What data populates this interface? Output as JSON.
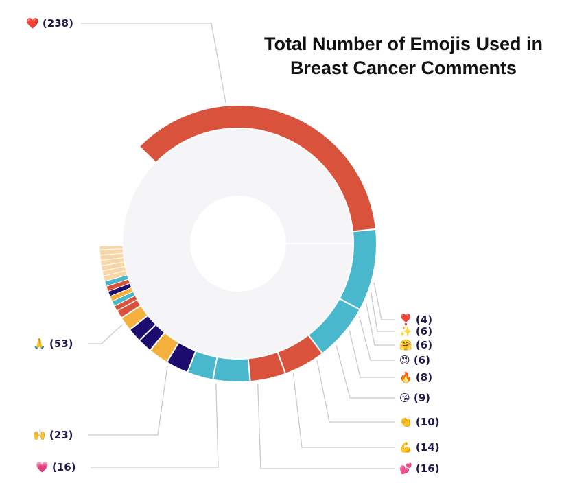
{
  "chart_data": {
    "type": "pie",
    "title_lines": [
      "Total Number of Emojis Used in",
      "Breast Cancer Comments"
    ],
    "slices": [
      {
        "label": "❤️",
        "value": 238,
        "display": "(238)",
        "color": "#d9533c"
      },
      {
        "label": "🙏",
        "value": 53,
        "display": "(53)",
        "color": "#4ab8cc"
      },
      {
        "label": "🙌",
        "value": 23,
        "display": "(23)",
        "color": "#4ab8cc"
      },
      {
        "label": "💗",
        "value": 16,
        "display": "(16)",
        "color": "#d9533c"
      },
      {
        "label": "💕",
        "value": 16,
        "display": "(16)",
        "color": "#d9533c"
      },
      {
        "label": "💪",
        "value": 14,
        "display": "(14)",
        "color": "#4ab8cc"
      },
      {
        "label": "👏",
        "value": 10,
        "display": "(10)",
        "color": "#4ab8cc"
      },
      {
        "label": "😘",
        "value": 9,
        "display": "(9)",
        "color": "#1b0c6e"
      },
      {
        "label": "🔥",
        "value": 8,
        "display": "(8)",
        "color": "#f5b13d"
      },
      {
        "label": "😍",
        "value": 6,
        "display": "(6)",
        "color": "#1b0c6e"
      },
      {
        "label": "🤗",
        "value": 6,
        "display": "(6)",
        "color": "#1b0c6e"
      },
      {
        "label": "✨",
        "value": 6,
        "display": "(6)",
        "color": "#f5b13d"
      },
      {
        "label": "❣️",
        "value": 4,
        "display": "(4)",
        "color": "#d9533c"
      }
    ],
    "other_segment_colors": [
      "#d9533c",
      "#4ab8cc",
      "#f5b13d",
      "#1b0c6e",
      "#d9533c",
      "#4ab8cc"
    ],
    "inner_fill": "#f5f5f7"
  }
}
